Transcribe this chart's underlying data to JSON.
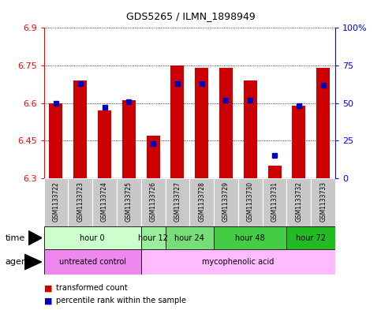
{
  "title": "GDS5265 / ILMN_1898949",
  "samples": [
    "GSM1133722",
    "GSM1133723",
    "GSM1133724",
    "GSM1133725",
    "GSM1133726",
    "GSM1133727",
    "GSM1133728",
    "GSM1133729",
    "GSM1133730",
    "GSM1133731",
    "GSM1133732",
    "GSM1133733"
  ],
  "bar_values": [
    6.6,
    6.69,
    6.57,
    6.61,
    6.47,
    6.75,
    6.74,
    6.74,
    6.69,
    6.35,
    6.59,
    6.74
  ],
  "percentile_values": [
    50,
    63,
    47,
    51,
    23,
    63,
    63,
    52,
    52,
    15,
    48,
    62
  ],
  "y_min": 6.3,
  "y_max": 6.9,
  "y_ticks": [
    6.3,
    6.45,
    6.6,
    6.75,
    6.9
  ],
  "y_tick_labels": [
    "6.3",
    "6.45",
    "6.6",
    "6.75",
    "6.9"
  ],
  "y2_ticks": [
    0,
    25,
    50,
    75,
    100
  ],
  "y2_tick_labels": [
    "0",
    "25",
    "50",
    "75",
    "100%"
  ],
  "bar_color": "#cc0000",
  "blue_color": "#0000bb",
  "time_groups": [
    {
      "label": "hour 0",
      "start": 0,
      "end": 4,
      "color": "#ccffcc"
    },
    {
      "label": "hour 12",
      "start": 4,
      "end": 5,
      "color": "#99ee99"
    },
    {
      "label": "hour 24",
      "start": 5,
      "end": 7,
      "color": "#77dd77"
    },
    {
      "label": "hour 48",
      "start": 7,
      "end": 10,
      "color": "#44cc44"
    },
    {
      "label": "hour 72",
      "start": 10,
      "end": 12,
      "color": "#22bb22"
    }
  ],
  "agent_groups": [
    {
      "label": "untreated control",
      "start": 0,
      "end": 4,
      "color": "#ee88ee"
    },
    {
      "label": "mycophenolic acid",
      "start": 4,
      "end": 12,
      "color": "#ffbbff"
    }
  ],
  "sample_bg": "#c8c8c8"
}
